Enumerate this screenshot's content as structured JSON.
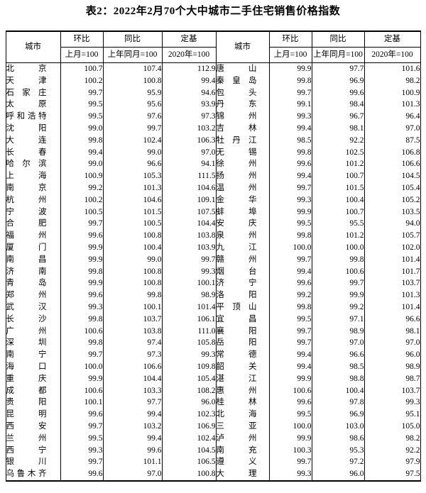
{
  "title": "表2：2022年2月70个大中城市二手住宅销售价格指数",
  "table": {
    "header": {
      "city": "城市",
      "mom": "环比",
      "mom_base": "上月=100",
      "yoy": "同比",
      "yoy_base": "上年同月=100",
      "fixed": "定基",
      "fixed_base": "2020年=100"
    },
    "left_rows": [
      {
        "city": "北京",
        "mom": "100.7",
        "yoy": "107.4",
        "fixed": "112.9"
      },
      {
        "city": "天津",
        "mom": "100.2",
        "yoy": "100.8",
        "fixed": "99.4"
      },
      {
        "city": "石家庄",
        "mom": "99.7",
        "yoy": "95.9",
        "fixed": "94.6"
      },
      {
        "city": "太原",
        "mom": "99.5",
        "yoy": "95.6",
        "fixed": "93.9"
      },
      {
        "city": "呼和浩特",
        "mom": "99.5",
        "yoy": "97.6",
        "fixed": "97.3"
      },
      {
        "city": "沈阳",
        "mom": "99.0",
        "yoy": "99.7",
        "fixed": "103.2"
      },
      {
        "city": "大连",
        "mom": "99.8",
        "yoy": "102.4",
        "fixed": "106.3"
      },
      {
        "city": "长春",
        "mom": "99.4",
        "yoy": "99.0",
        "fixed": "97.0"
      },
      {
        "city": "哈尔滨",
        "mom": "99.0",
        "yoy": "96.6",
        "fixed": "94.1"
      },
      {
        "city": "上海",
        "mom": "100.9",
        "yoy": "105.3",
        "fixed": "111.5"
      },
      {
        "city": "南京",
        "mom": "99.2",
        "yoy": "101.3",
        "fixed": "104.6"
      },
      {
        "city": "杭州",
        "mom": "100.2",
        "yoy": "104.6",
        "fixed": "109.1"
      },
      {
        "city": "宁波",
        "mom": "100.5",
        "yoy": "101.5",
        "fixed": "107.5"
      },
      {
        "city": "合肥",
        "mom": "99.7",
        "yoy": "100.5",
        "fixed": "104.4"
      },
      {
        "city": "福州",
        "mom": "99.6",
        "yoy": "100.8",
        "fixed": "103.8"
      },
      {
        "city": "厦门",
        "mom": "99.9",
        "yoy": "100.4",
        "fixed": "103.9"
      },
      {
        "city": "南昌",
        "mom": "99.9",
        "yoy": "99.0",
        "fixed": "99.7"
      },
      {
        "city": "济南",
        "mom": "99.8",
        "yoy": "100.8",
        "fixed": "99.3"
      },
      {
        "city": "青岛",
        "mom": "99.9",
        "yoy": "100.8",
        "fixed": "100.1"
      },
      {
        "city": "郑州",
        "mom": "99.6",
        "yoy": "99.8",
        "fixed": "98.9"
      },
      {
        "city": "武汉",
        "mom": "99.3",
        "yoy": "100.1",
        "fixed": "101.4"
      },
      {
        "city": "长沙",
        "mom": "99.8",
        "yoy": "103.7",
        "fixed": "106.1"
      },
      {
        "city": "广州",
        "mom": "100.6",
        "yoy": "103.8",
        "fixed": "111.0"
      },
      {
        "city": "深圳",
        "mom": "99.8",
        "yoy": "97.4",
        "fixed": "105.8"
      },
      {
        "city": "南宁",
        "mom": "99.7",
        "yoy": "97.3",
        "fixed": "99.3"
      },
      {
        "city": "海口",
        "mom": "100.0",
        "yoy": "106.6",
        "fixed": "109.8"
      },
      {
        "city": "重庆",
        "mom": "99.9",
        "yoy": "104.4",
        "fixed": "105.4"
      },
      {
        "city": "成都",
        "mom": "100.6",
        "yoy": "103.3",
        "fixed": "108.2"
      },
      {
        "city": "贵阳",
        "mom": "100.1",
        "yoy": "97.7",
        "fixed": "96.0"
      },
      {
        "city": "昆明",
        "mom": "99.6",
        "yoy": "99.4",
        "fixed": "102.3"
      },
      {
        "city": "西安",
        "mom": "99.7",
        "yoy": "103.2",
        "fixed": "106.9"
      },
      {
        "city": "兰州",
        "mom": "99.5",
        "yoy": "99.4",
        "fixed": "102.4"
      },
      {
        "city": "西宁",
        "mom": "99.3",
        "yoy": "99.6",
        "fixed": "104.5"
      },
      {
        "city": "银川",
        "mom": "99.7",
        "yoy": "101.1",
        "fixed": "106.5"
      },
      {
        "city": "乌鲁木齐",
        "mom": "99.6",
        "yoy": "97.0",
        "fixed": "100.8"
      }
    ],
    "right_rows": [
      {
        "city": "唐山",
        "mom": "99.9",
        "yoy": "97.7",
        "fixed": "101.6"
      },
      {
        "city": "秦皇岛",
        "mom": "99.8",
        "yoy": "96.9",
        "fixed": "98.2"
      },
      {
        "city": "包头",
        "mom": "99.7",
        "yoy": "99.6",
        "fixed": "100.9"
      },
      {
        "city": "丹东",
        "mom": "99.1",
        "yoy": "98.4",
        "fixed": "101.3"
      },
      {
        "city": "锦州",
        "mom": "99.3",
        "yoy": "96.7",
        "fixed": "96.4"
      },
      {
        "city": "吉林",
        "mom": "99.4",
        "yoy": "98.1",
        "fixed": "97.0"
      },
      {
        "city": "牡丹江",
        "mom": "98.5",
        "yoy": "92.2",
        "fixed": "87.5"
      },
      {
        "city": "无锡",
        "mom": "99.8",
        "yoy": "102.5",
        "fixed": "106.8"
      },
      {
        "city": "徐州",
        "mom": "99.6",
        "yoy": "101.2",
        "fixed": "106.6"
      },
      {
        "city": "扬州",
        "mom": "99.4",
        "yoy": "100.7",
        "fixed": "104.5"
      },
      {
        "city": "温州",
        "mom": "99.7",
        "yoy": "101.5",
        "fixed": "105.4"
      },
      {
        "city": "金华",
        "mom": "99.3",
        "yoy": "100.4",
        "fixed": "105.2"
      },
      {
        "city": "蚌埠",
        "mom": "99.9",
        "yoy": "100.7",
        "fixed": "103.5"
      },
      {
        "city": "安庆",
        "mom": "99.5",
        "yoy": "95.5",
        "fixed": "94.0"
      },
      {
        "city": "泉州",
        "mom": "99.8",
        "yoy": "101.2",
        "fixed": "105.7"
      },
      {
        "city": "九江",
        "mom": "100.0",
        "yoy": "100.0",
        "fixed": "102.0"
      },
      {
        "city": "赣州",
        "mom": "99.7",
        "yoy": "99.8",
        "fixed": "101.4"
      },
      {
        "city": "烟台",
        "mom": "99.4",
        "yoy": "100.6",
        "fixed": "101.7"
      },
      {
        "city": "济宁",
        "mom": "99.6",
        "yoy": "99.7",
        "fixed": "103.7"
      },
      {
        "city": "洛阳",
        "mom": "99.2",
        "yoy": "99.9",
        "fixed": "101.3"
      },
      {
        "city": "平顶山",
        "mom": "99.8",
        "yoy": "99.2",
        "fixed": "101.4"
      },
      {
        "city": "宜昌",
        "mom": "99.5",
        "yoy": "97.1",
        "fixed": "96.6"
      },
      {
        "city": "襄阳",
        "mom": "99.7",
        "yoy": "98.9",
        "fixed": "98.1"
      },
      {
        "city": "岳阳",
        "mom": "99.7",
        "yoy": "97.0",
        "fixed": "97.0"
      },
      {
        "city": "常德",
        "mom": "99.4",
        "yoy": "96.6",
        "fixed": "96.0"
      },
      {
        "city": "韶关",
        "mom": "99.4",
        "yoy": "98.5",
        "fixed": "98.9"
      },
      {
        "city": "湛江",
        "mom": "99.9",
        "yoy": "98.8",
        "fixed": "98.7"
      },
      {
        "city": "惠州",
        "mom": "100.6",
        "yoy": "100.4",
        "fixed": "103.7"
      },
      {
        "city": "桂林",
        "mom": "99.6",
        "yoy": "97.8",
        "fixed": "99.3"
      },
      {
        "city": "北海",
        "mom": "99.5",
        "yoy": "96.9",
        "fixed": "95.1"
      },
      {
        "city": "三亚",
        "mom": "100.0",
        "yoy": "103.0",
        "fixed": "105.0"
      },
      {
        "city": "泸州",
        "mom": "99.9",
        "yoy": "98.6",
        "fixed": "98.2"
      },
      {
        "city": "南充",
        "mom": "100.3",
        "yoy": "95.3",
        "fixed": "92.2"
      },
      {
        "city": "遵义",
        "mom": "99.7",
        "yoy": "97.2",
        "fixed": "97.9"
      },
      {
        "city": "大理",
        "mom": "99.3",
        "yoy": "96.0",
        "fixed": "97.5"
      }
    ]
  }
}
